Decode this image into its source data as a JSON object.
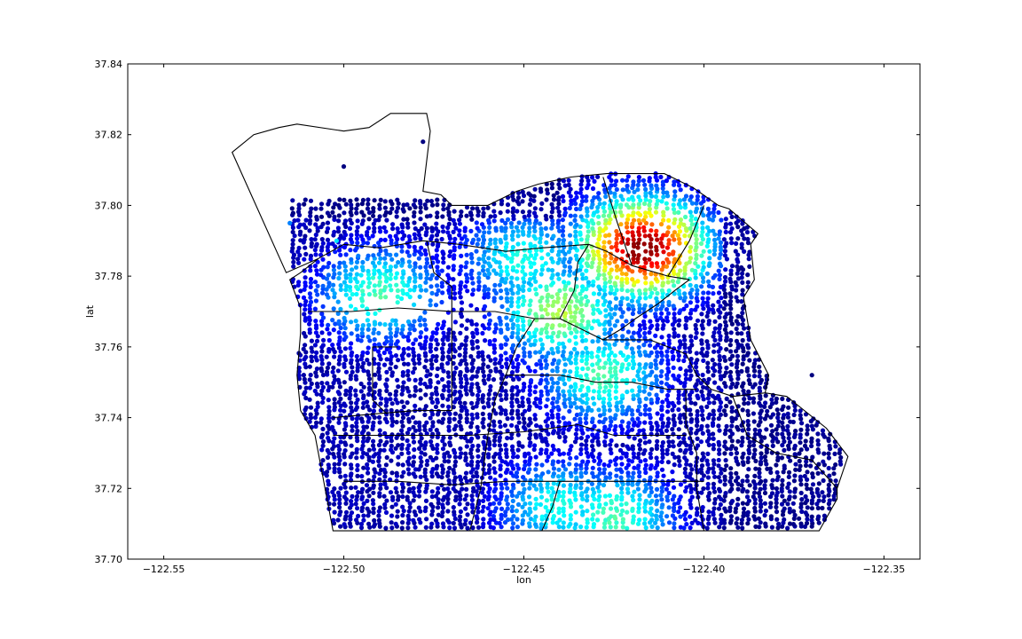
{
  "chart_data": {
    "type": "scatter",
    "title": "",
    "xlabel": "lon",
    "ylabel": "lat",
    "xlim": [
      -122.56,
      -122.34
    ],
    "ylim": [
      37.7,
      37.84
    ],
    "x_ticks": [
      -122.55,
      -122.5,
      -122.45,
      -122.4,
      -122.35
    ],
    "x_tick_labels": [
      "−122.55",
      "−122.50",
      "−122.45",
      "−122.40",
      "−122.35"
    ],
    "y_ticks": [
      37.7,
      37.72,
      37.74,
      37.76,
      37.78,
      37.8,
      37.82,
      37.84
    ],
    "y_tick_labels": [
      "37.70",
      "37.72",
      "37.74",
      "37.76",
      "37.78",
      "37.80",
      "37.82",
      "37.84"
    ],
    "grid": false,
    "colormap": "jet",
    "marker_color": "per-point (jet colormap, value 0-1)",
    "hotspots": [
      {
        "lon": -122.417,
        "lat": 37.788,
        "value": 1.0
      },
      {
        "lon": -122.44,
        "lat": 37.77,
        "value": 0.55
      },
      {
        "lon": -122.49,
        "lat": 37.775,
        "value": 0.45
      },
      {
        "lon": -122.428,
        "lat": 37.752,
        "value": 0.45
      },
      {
        "lon": -122.425,
        "lat": 37.712,
        "value": 0.45
      },
      {
        "lon": -122.44,
        "lat": 37.715,
        "value": 0.4
      },
      {
        "lon": -122.45,
        "lat": 37.785,
        "value": 0.4
      }
    ],
    "outliers": [
      {
        "lon": -122.478,
        "lat": 37.818,
        "value": 0.0
      },
      {
        "lon": -122.5,
        "lat": 37.811,
        "value": 0.0
      },
      {
        "lon": -122.515,
        "lat": 37.795,
        "value": 0.25
      },
      {
        "lon": -122.502,
        "lat": 37.79,
        "value": 0.35
      },
      {
        "lon": -122.37,
        "lat": 37.752,
        "value": 0.0
      }
    ]
  },
  "map": {
    "boundary_color": "#000000",
    "outline": [
      [
        -122.531,
        37.815
      ],
      [
        -122.525,
        37.82
      ],
      [
        -122.518,
        37.822
      ],
      [
        -122.513,
        37.823
      ],
      [
        -122.5,
        37.821
      ],
      [
        -122.493,
        37.822
      ],
      [
        -122.487,
        37.826
      ],
      [
        -122.477,
        37.826
      ],
      [
        -122.476,
        37.821
      ],
      [
        -122.478,
        37.804
      ],
      [
        -122.473,
        37.803
      ],
      [
        -122.47,
        37.8
      ],
      [
        -122.46,
        37.8
      ],
      [
        -122.452,
        37.804
      ],
      [
        -122.446,
        37.806
      ],
      [
        -122.437,
        37.808
      ],
      [
        -122.427,
        37.809
      ],
      [
        -122.411,
        37.809
      ],
      [
        -122.403,
        37.805
      ],
      [
        -122.396,
        37.8
      ],
      [
        -122.393,
        37.799
      ],
      [
        -122.385,
        37.792
      ],
      [
        -122.387,
        37.789
      ],
      [
        -122.386,
        37.779
      ],
      [
        -122.389,
        37.774
      ],
      [
        -122.387,
        37.762
      ],
      [
        -122.382,
        37.752
      ],
      [
        -122.383,
        37.747
      ],
      [
        -122.377,
        37.746
      ],
      [
        -122.366,
        37.737
      ],
      [
        -122.36,
        37.729
      ],
      [
        -122.363,
        37.72
      ],
      [
        -122.363,
        37.717
      ],
      [
        -122.368,
        37.708
      ],
      [
        -122.409,
        37.708
      ],
      [
        -122.47,
        37.708
      ],
      [
        -122.499,
        37.708
      ],
      [
        -122.503,
        37.708
      ],
      [
        -122.508,
        37.735
      ],
      [
        -122.512,
        37.742
      ],
      [
        -122.513,
        37.752
      ],
      [
        -122.512,
        37.764
      ],
      [
        -122.512,
        37.771
      ],
      [
        -122.515,
        37.779
      ],
      [
        -122.512,
        37.781
      ],
      [
        -122.507,
        37.785
      ],
      [
        -122.516,
        37.781
      ],
      [
        -122.531,
        37.815
      ]
    ],
    "district_lines": [
      [
        [
          -122.507,
          37.785
        ],
        [
          -122.5,
          37.789
        ],
        [
          -122.49,
          37.788
        ],
        [
          -122.478,
          37.79
        ],
        [
          -122.468,
          37.789
        ],
        [
          -122.455,
          37.787
        ],
        [
          -122.445,
          37.788
        ],
        [
          -122.432,
          37.789
        ]
      ],
      [
        [
          -122.432,
          37.789
        ],
        [
          -122.427,
          37.787
        ],
        [
          -122.42,
          37.783
        ],
        [
          -122.41,
          37.78
        ],
        [
          -122.404,
          37.779
        ]
      ],
      [
        [
          -122.404,
          37.779
        ],
        [
          -122.408,
          37.776
        ],
        [
          -122.413,
          37.772
        ],
        [
          -122.419,
          37.768
        ],
        [
          -122.423,
          37.765
        ],
        [
          -122.428,
          37.762
        ]
      ],
      [
        [
          -122.432,
          37.789
        ],
        [
          -122.435,
          37.784
        ],
        [
          -122.436,
          37.776
        ],
        [
          -122.44,
          37.768
        ],
        [
          -122.447,
          37.768
        ]
      ],
      [
        [
          -122.477,
          37.79
        ],
        [
          -122.475,
          37.781
        ],
        [
          -122.47,
          37.777
        ],
        [
          -122.47,
          37.76
        ],
        [
          -122.47,
          37.742
        ]
      ],
      [
        [
          -122.51,
          37.77
        ],
        [
          -122.498,
          37.77
        ],
        [
          -122.485,
          37.771
        ],
        [
          -122.47,
          37.77
        ],
        [
          -122.458,
          37.77
        ],
        [
          -122.447,
          37.768
        ]
      ],
      [
        [
          -122.447,
          37.768
        ],
        [
          -122.452,
          37.76
        ],
        [
          -122.455,
          37.752
        ],
        [
          -122.458,
          37.745
        ],
        [
          -122.46,
          37.735
        ],
        [
          -122.462,
          37.72
        ],
        [
          -122.465,
          37.708
        ]
      ],
      [
        [
          -122.44,
          37.768
        ],
        [
          -122.428,
          37.762
        ],
        [
          -122.415,
          37.762
        ],
        [
          -122.405,
          37.758
        ],
        [
          -122.402,
          37.752
        ],
        [
          -122.398,
          37.748
        ],
        [
          -122.392,
          37.746
        ],
        [
          -122.383,
          37.747
        ]
      ],
      [
        [
          -122.455,
          37.752
        ],
        [
          -122.44,
          37.752
        ],
        [
          -122.43,
          37.75
        ],
        [
          -122.42,
          37.75
        ],
        [
          -122.41,
          37.748
        ],
        [
          -122.402,
          37.748
        ]
      ],
      [
        [
          -122.405,
          37.748
        ],
        [
          -122.405,
          37.738
        ],
        [
          -122.402,
          37.73
        ],
        [
          -122.402,
          37.72
        ],
        [
          -122.4,
          37.708
        ]
      ],
      [
        [
          -122.503,
          37.735
        ],
        [
          -122.49,
          37.735
        ],
        [
          -122.478,
          37.735
        ],
        [
          -122.465,
          37.735
        ],
        [
          -122.45,
          37.736
        ],
        [
          -122.435,
          37.738
        ],
        [
          -122.425,
          37.735
        ],
        [
          -122.415,
          37.735
        ],
        [
          -122.405,
          37.735
        ]
      ],
      [
        [
          -122.47,
          37.742
        ],
        [
          -122.48,
          37.742
        ],
        [
          -122.492,
          37.741
        ],
        [
          -122.503,
          37.74
        ]
      ],
      [
        [
          -122.5,
          37.722
        ],
        [
          -122.485,
          37.722
        ],
        [
          -122.47,
          37.721
        ],
        [
          -122.455,
          37.722
        ],
        [
          -122.44,
          37.722
        ],
        [
          -122.425,
          37.722
        ],
        [
          -122.412,
          37.722
        ],
        [
          -122.4,
          37.722
        ]
      ],
      [
        [
          -122.44,
          37.722
        ],
        [
          -122.442,
          37.715
        ],
        [
          -122.445,
          37.708
        ]
      ],
      [
        [
          -122.392,
          37.746
        ],
        [
          -122.388,
          37.735
        ],
        [
          -122.38,
          37.73
        ],
        [
          -122.37,
          37.728
        ],
        [
          -122.363,
          37.72
        ]
      ],
      [
        [
          -122.42,
          37.783
        ],
        [
          -122.424,
          37.795
        ],
        [
          -122.428,
          37.808
        ]
      ],
      [
        [
          -122.41,
          37.78
        ],
        [
          -122.404,
          37.79
        ],
        [
          -122.4,
          37.8
        ]
      ],
      [
        [
          -122.485,
          37.76
        ],
        [
          -122.492,
          37.76
        ],
        [
          -122.492,
          37.745
        ],
        [
          -122.488,
          37.741
        ]
      ]
    ]
  }
}
